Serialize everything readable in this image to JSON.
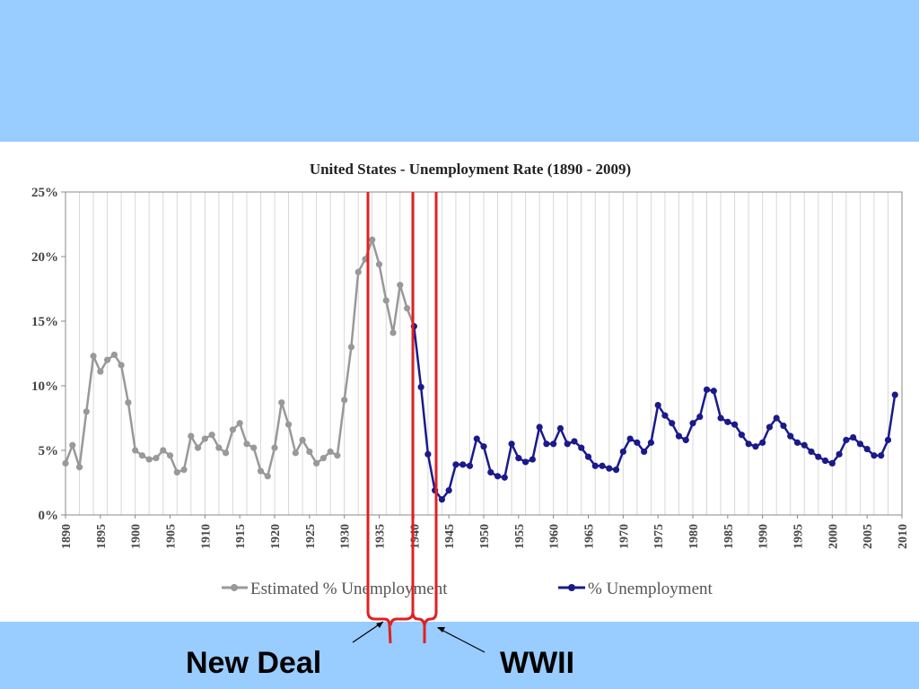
{
  "chart_data": {
    "type": "line",
    "title": "United States - Unemployment Rate (1890 - 2009)",
    "xlim": [
      1890,
      2010
    ],
    "ylim": [
      0,
      25
    ],
    "y_ticks": [
      "0%",
      "5%",
      "10%",
      "15%",
      "20%",
      "25%"
    ],
    "y_tick_values": [
      0,
      5,
      10,
      15,
      20,
      25
    ],
    "x_ticks": [
      "1890",
      "1895",
      "1900",
      "1905",
      "1910",
      "1915",
      "1920",
      "1925",
      "1930",
      "1935",
      "1940",
      "1945",
      "1950",
      "1955",
      "1960",
      "1965",
      "1970",
      "1975",
      "1980",
      "1985",
      "1990",
      "1995",
      "2000",
      "2005",
      "2010"
    ],
    "x_tick_values": [
      1890,
      1895,
      1900,
      1905,
      1910,
      1915,
      1920,
      1925,
      1930,
      1935,
      1940,
      1945,
      1950,
      1955,
      1960,
      1965,
      1970,
      1975,
      1980,
      1985,
      1990,
      1995,
      2000,
      2005,
      2010
    ],
    "grid": "vertical",
    "legend_position": "bottom",
    "series": [
      {
        "name": "Estimated % Unemployment",
        "color": "#999999",
        "x": [
          1890,
          1891,
          1892,
          1893,
          1894,
          1895,
          1896,
          1897,
          1898,
          1899,
          1900,
          1901,
          1902,
          1903,
          1904,
          1905,
          1906,
          1907,
          1908,
          1909,
          1910,
          1911,
          1912,
          1913,
          1914,
          1915,
          1916,
          1917,
          1918,
          1919,
          1920,
          1921,
          1922,
          1923,
          1924,
          1925,
          1926,
          1927,
          1928,
          1929,
          1930,
          1931,
          1932,
          1933,
          1934,
          1935,
          1936,
          1937,
          1938,
          1939,
          1940
        ],
        "y": [
          4.0,
          5.4,
          3.7,
          8.0,
          12.3,
          11.1,
          12.0,
          12.4,
          11.6,
          8.7,
          5.0,
          4.6,
          4.3,
          4.4,
          5.0,
          4.6,
          3.3,
          3.5,
          6.1,
          5.2,
          5.9,
          6.2,
          5.2,
          4.8,
          6.6,
          7.1,
          5.5,
          5.2,
          3.4,
          3.0,
          5.2,
          8.7,
          7.0,
          4.8,
          5.8,
          4.9,
          4.0,
          4.4,
          4.9,
          4.6,
          8.9,
          13.0,
          18.8,
          19.8,
          21.3,
          19.4,
          16.6,
          14.1,
          17.8,
          16.0,
          14.6
        ]
      },
      {
        "name": "% Unemployment",
        "color": "#1a1a8c",
        "x": [
          1940,
          1941,
          1942,
          1943,
          1944,
          1945,
          1946,
          1947,
          1948,
          1949,
          1950,
          1951,
          1952,
          1953,
          1954,
          1955,
          1956,
          1957,
          1958,
          1959,
          1960,
          1961,
          1962,
          1963,
          1964,
          1965,
          1966,
          1967,
          1968,
          1969,
          1970,
          1971,
          1972,
          1973,
          1974,
          1975,
          1976,
          1977,
          1978,
          1979,
          1980,
          1981,
          1982,
          1983,
          1984,
          1985,
          1986,
          1987,
          1988,
          1989,
          1990,
          1991,
          1992,
          1993,
          1994,
          1995,
          1996,
          1997,
          1998,
          1999,
          2000,
          2001,
          2002,
          2003,
          2004,
          2005,
          2006,
          2007,
          2008,
          2009
        ],
        "y": [
          14.6,
          9.9,
          4.7,
          1.9,
          1.2,
          1.9,
          3.9,
          3.9,
          3.8,
          5.9,
          5.3,
          3.3,
          3.0,
          2.9,
          5.5,
          4.4,
          4.1,
          4.3,
          6.8,
          5.5,
          5.5,
          6.7,
          5.5,
          5.7,
          5.2,
          4.5,
          3.8,
          3.8,
          3.6,
          3.5,
          4.9,
          5.9,
          5.6,
          4.9,
          5.6,
          8.5,
          7.7,
          7.1,
          6.1,
          5.8,
          7.1,
          7.6,
          9.7,
          9.6,
          7.5,
          7.2,
          7.0,
          6.2,
          5.5,
          5.3,
          5.6,
          6.8,
          7.5,
          6.9,
          6.1,
          5.6,
          5.4,
          4.9,
          4.5,
          4.2,
          4.0,
          4.7,
          5.8,
          6.0,
          5.5,
          5.1,
          4.6,
          4.6,
          5.8,
          9.3
        ]
      }
    ]
  },
  "callouts": {
    "new_deal": "New Deal",
    "wwii": "WWII"
  },
  "colors": {
    "background": "#99ccff",
    "panel": "#ffffff",
    "bracket": "#e02020"
  }
}
